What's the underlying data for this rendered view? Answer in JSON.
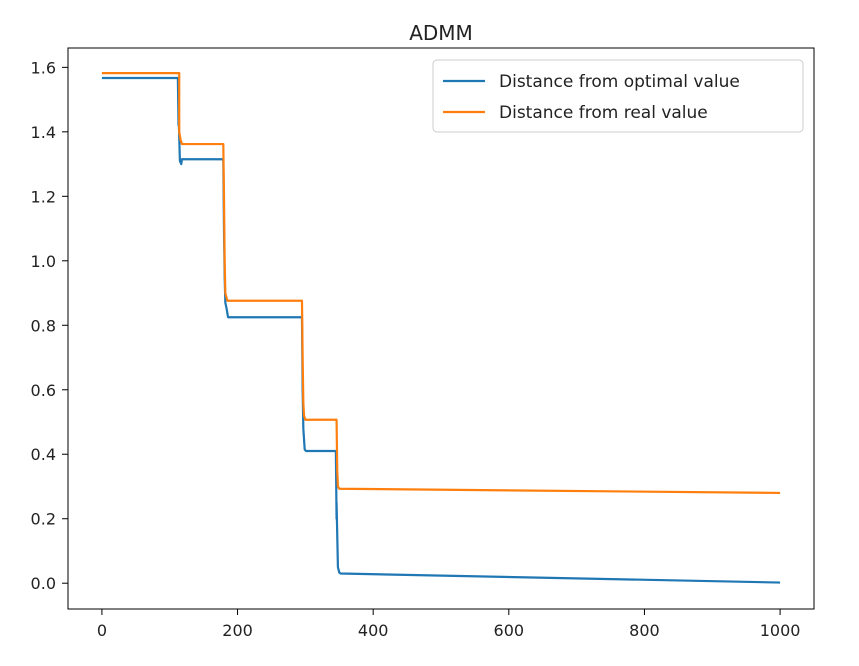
{
  "chart_data": {
    "type": "line",
    "title": "ADMM",
    "xlabel": "",
    "ylabel": "",
    "xlim": [
      -50,
      1050
    ],
    "ylim": [
      -0.08,
      1.66
    ],
    "xticks": [
      0,
      200,
      400,
      600,
      800,
      1000
    ],
    "xtick_labels": [
      "0",
      "200",
      "400",
      "600",
      "800",
      "1000"
    ],
    "yticks": [
      0.0,
      0.2,
      0.4,
      0.6,
      0.8,
      1.0,
      1.2,
      1.4,
      1.6
    ],
    "ytick_labels": [
      "0.0",
      "0.2",
      "0.4",
      "0.6",
      "0.8",
      "1.0",
      "1.2",
      "1.4",
      "1.6"
    ],
    "grid": false,
    "legend_position": "upper right",
    "series": [
      {
        "name": "Distance from optimal value",
        "color": "#1f77b4",
        "x": [
          0,
          112,
          113,
          113,
          115,
          117,
          118,
          179,
          180,
          181,
          182,
          184,
          186,
          295,
          296,
          297,
          299,
          301,
          345,
          346,
          346,
          348,
          350,
          352,
          1000
        ],
        "y": [
          1.567,
          1.567,
          1.42,
          1.46,
          1.31,
          1.3,
          1.315,
          1.315,
          1.1,
          0.95,
          0.87,
          0.85,
          0.825,
          0.825,
          0.6,
          0.48,
          0.415,
          0.41,
          0.41,
          0.2,
          0.25,
          0.05,
          0.033,
          0.03,
          0.002
        ]
      },
      {
        "name": "Distance from real value",
        "color": "#ff7f0e",
        "x": [
          0,
          114,
          114,
          116,
          118,
          179,
          180,
          181,
          182,
          185,
          295,
          296,
          297,
          298,
          300,
          346,
          347,
          348,
          350,
          1000
        ],
        "y": [
          1.582,
          1.582,
          1.4,
          1.375,
          1.362,
          1.362,
          1.2,
          1.0,
          0.9,
          0.876,
          0.876,
          0.7,
          0.56,
          0.52,
          0.507,
          0.507,
          0.35,
          0.3,
          0.293,
          0.28
        ]
      }
    ]
  }
}
